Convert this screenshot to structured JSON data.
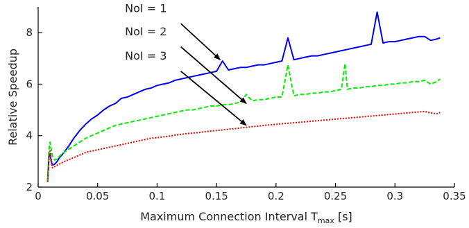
{
  "chart_data": {
    "type": "line",
    "xlabel": "Maximum Connection Interval T",
    "xlabel_sub": "max",
    "xlabel_suffix": " [s]",
    "ylabel": "Relative Speedup",
    "xlim": [
      0,
      0.35
    ],
    "ylim": [
      2,
      9
    ],
    "xticks": [
      0,
      0.05,
      0.1,
      0.15,
      0.2,
      0.25,
      0.3,
      0.35
    ],
    "xtick_labels": [
      "0",
      "0.05",
      "0.1",
      "0.15",
      "0.2",
      "0.25",
      "0.3",
      "0.35"
    ],
    "yticks": [
      2,
      4,
      6,
      8
    ],
    "ytick_labels": [
      "2",
      "4",
      "6",
      "8"
    ],
    "grid": false,
    "legend": "none",
    "series": [
      {
        "color": "#0000ee",
        "style": "solid",
        "points": [
          [
            0.008,
            2.2
          ],
          [
            0.009,
            3.2
          ],
          [
            0.01,
            3.3
          ],
          [
            0.011,
            3.0
          ],
          [
            0.012,
            2.85
          ],
          [
            0.014,
            2.9
          ],
          [
            0.016,
            3.0
          ],
          [
            0.018,
            3.15
          ],
          [
            0.02,
            3.25
          ],
          [
            0.025,
            3.55
          ],
          [
            0.03,
            3.9
          ],
          [
            0.035,
            4.2
          ],
          [
            0.04,
            4.45
          ],
          [
            0.045,
            4.65
          ],
          [
            0.05,
            4.8
          ],
          [
            0.055,
            5.0
          ],
          [
            0.06,
            5.15
          ],
          [
            0.065,
            5.25
          ],
          [
            0.07,
            5.45
          ],
          [
            0.075,
            5.5
          ],
          [
            0.08,
            5.6
          ],
          [
            0.085,
            5.7
          ],
          [
            0.09,
            5.8
          ],
          [
            0.095,
            5.85
          ],
          [
            0.1,
            5.95
          ],
          [
            0.105,
            6.0
          ],
          [
            0.11,
            6.05
          ],
          [
            0.115,
            6.15
          ],
          [
            0.12,
            6.2
          ],
          [
            0.125,
            6.25
          ],
          [
            0.13,
            6.3
          ],
          [
            0.135,
            6.35
          ],
          [
            0.14,
            6.4
          ],
          [
            0.145,
            6.45
          ],
          [
            0.15,
            6.5
          ],
          [
            0.155,
            6.9
          ],
          [
            0.16,
            6.55
          ],
          [
            0.165,
            6.6
          ],
          [
            0.17,
            6.65
          ],
          [
            0.175,
            6.65
          ],
          [
            0.18,
            6.7
          ],
          [
            0.185,
            6.75
          ],
          [
            0.19,
            6.75
          ],
          [
            0.195,
            6.8
          ],
          [
            0.2,
            6.85
          ],
          [
            0.205,
            6.9
          ],
          [
            0.21,
            7.8
          ],
          [
            0.215,
            6.95
          ],
          [
            0.22,
            7.0
          ],
          [
            0.225,
            7.05
          ],
          [
            0.23,
            7.1
          ],
          [
            0.235,
            7.1
          ],
          [
            0.24,
            7.15
          ],
          [
            0.245,
            7.2
          ],
          [
            0.25,
            7.25
          ],
          [
            0.255,
            7.3
          ],
          [
            0.26,
            7.35
          ],
          [
            0.265,
            7.4
          ],
          [
            0.27,
            7.45
          ],
          [
            0.275,
            7.5
          ],
          [
            0.28,
            7.55
          ],
          [
            0.285,
            8.8
          ],
          [
            0.29,
            7.6
          ],
          [
            0.295,
            7.65
          ],
          [
            0.3,
            7.65
          ],
          [
            0.305,
            7.7
          ],
          [
            0.31,
            7.75
          ],
          [
            0.315,
            7.8
          ],
          [
            0.32,
            7.85
          ],
          [
            0.325,
            7.85
          ],
          [
            0.33,
            7.7
          ],
          [
            0.335,
            7.75
          ],
          [
            0.338,
            7.8
          ]
        ]
      },
      {
        "color": "#00ee00",
        "style": "dashed",
        "points": [
          [
            0.008,
            2.25
          ],
          [
            0.009,
            3.4
          ],
          [
            0.01,
            3.75
          ],
          [
            0.011,
            3.45
          ],
          [
            0.012,
            3.2
          ],
          [
            0.014,
            3.05
          ],
          [
            0.016,
            3.1
          ],
          [
            0.018,
            3.2
          ],
          [
            0.02,
            3.3
          ],
          [
            0.025,
            3.45
          ],
          [
            0.03,
            3.6
          ],
          [
            0.035,
            3.75
          ],
          [
            0.04,
            3.9
          ],
          [
            0.045,
            4.0
          ],
          [
            0.05,
            4.1
          ],
          [
            0.055,
            4.2
          ],
          [
            0.06,
            4.3
          ],
          [
            0.065,
            4.4
          ],
          [
            0.07,
            4.45
          ],
          [
            0.075,
            4.5
          ],
          [
            0.08,
            4.55
          ],
          [
            0.085,
            4.6
          ],
          [
            0.09,
            4.65
          ],
          [
            0.095,
            4.7
          ],
          [
            0.1,
            4.75
          ],
          [
            0.105,
            4.8
          ],
          [
            0.11,
            4.85
          ],
          [
            0.115,
            4.9
          ],
          [
            0.12,
            4.95
          ],
          [
            0.125,
            5.0
          ],
          [
            0.13,
            5.0
          ],
          [
            0.135,
            5.05
          ],
          [
            0.14,
            5.1
          ],
          [
            0.145,
            5.15
          ],
          [
            0.15,
            5.15
          ],
          [
            0.155,
            5.2
          ],
          [
            0.16,
            5.2
          ],
          [
            0.165,
            5.25
          ],
          [
            0.17,
            5.3
          ],
          [
            0.175,
            5.6
          ],
          [
            0.18,
            5.35
          ],
          [
            0.185,
            5.4
          ],
          [
            0.19,
            5.4
          ],
          [
            0.195,
            5.45
          ],
          [
            0.2,
            5.5
          ],
          [
            0.205,
            5.5
          ],
          [
            0.21,
            6.75
          ],
          [
            0.215,
            5.55
          ],
          [
            0.22,
            5.6
          ],
          [
            0.225,
            5.6
          ],
          [
            0.23,
            5.65
          ],
          [
            0.235,
            5.65
          ],
          [
            0.24,
            5.7
          ],
          [
            0.245,
            5.7
          ],
          [
            0.25,
            5.75
          ],
          [
            0.255,
            5.8
          ],
          [
            0.258,
            6.8
          ],
          [
            0.26,
            5.8
          ],
          [
            0.265,
            5.85
          ],
          [
            0.27,
            5.85
          ],
          [
            0.275,
            5.9
          ],
          [
            0.28,
            5.9
          ],
          [
            0.285,
            5.95
          ],
          [
            0.29,
            5.95
          ],
          [
            0.295,
            6.0
          ],
          [
            0.3,
            6.0
          ],
          [
            0.305,
            6.05
          ],
          [
            0.31,
            6.05
          ],
          [
            0.315,
            6.1
          ],
          [
            0.32,
            6.1
          ],
          [
            0.325,
            6.15
          ],
          [
            0.33,
            6.0
          ],
          [
            0.335,
            6.1
          ],
          [
            0.338,
            6.2
          ]
        ]
      },
      {
        "color": "#ee0000",
        "style": "dotted",
        "points": [
          [
            0.008,
            2.2
          ],
          [
            0.009,
            3.0
          ],
          [
            0.01,
            3.4
          ],
          [
            0.011,
            3.05
          ],
          [
            0.012,
            2.75
          ],
          [
            0.014,
            2.8
          ],
          [
            0.016,
            2.85
          ],
          [
            0.018,
            2.9
          ],
          [
            0.02,
            2.95
          ],
          [
            0.025,
            3.05
          ],
          [
            0.03,
            3.15
          ],
          [
            0.035,
            3.25
          ],
          [
            0.04,
            3.35
          ],
          [
            0.045,
            3.4
          ],
          [
            0.05,
            3.45
          ],
          [
            0.055,
            3.5
          ],
          [
            0.06,
            3.55
          ],
          [
            0.065,
            3.6
          ],
          [
            0.07,
            3.65
          ],
          [
            0.075,
            3.7
          ],
          [
            0.08,
            3.75
          ],
          [
            0.085,
            3.8
          ],
          [
            0.09,
            3.85
          ],
          [
            0.095,
            3.9
          ],
          [
            0.1,
            3.92
          ],
          [
            0.105,
            3.95
          ],
          [
            0.11,
            3.98
          ],
          [
            0.115,
            4.02
          ],
          [
            0.12,
            4.05
          ],
          [
            0.125,
            4.08
          ],
          [
            0.13,
            4.1
          ],
          [
            0.135,
            4.12
          ],
          [
            0.14,
            4.15
          ],
          [
            0.145,
            4.18
          ],
          [
            0.15,
            4.2
          ],
          [
            0.155,
            4.22
          ],
          [
            0.16,
            4.25
          ],
          [
            0.165,
            4.27
          ],
          [
            0.17,
            4.3
          ],
          [
            0.175,
            4.32
          ],
          [
            0.18,
            4.35
          ],
          [
            0.185,
            4.37
          ],
          [
            0.19,
            4.4
          ],
          [
            0.195,
            4.42
          ],
          [
            0.2,
            4.44
          ],
          [
            0.205,
            4.46
          ],
          [
            0.21,
            4.48
          ],
          [
            0.215,
            4.5
          ],
          [
            0.22,
            4.52
          ],
          [
            0.225,
            4.54
          ],
          [
            0.23,
            4.56
          ],
          [
            0.235,
            4.58
          ],
          [
            0.24,
            4.6
          ],
          [
            0.245,
            4.62
          ],
          [
            0.25,
            4.64
          ],
          [
            0.255,
            4.66
          ],
          [
            0.26,
            4.68
          ],
          [
            0.265,
            4.7
          ],
          [
            0.27,
            4.72
          ],
          [
            0.275,
            4.74
          ],
          [
            0.28,
            4.76
          ],
          [
            0.285,
            4.78
          ],
          [
            0.29,
            4.8
          ],
          [
            0.295,
            4.82
          ],
          [
            0.3,
            4.84
          ],
          [
            0.305,
            4.86
          ],
          [
            0.31,
            4.88
          ],
          [
            0.315,
            4.9
          ],
          [
            0.32,
            4.92
          ],
          [
            0.325,
            4.94
          ],
          [
            0.33,
            4.88
          ],
          [
            0.335,
            4.85
          ],
          [
            0.338,
            4.9
          ]
        ]
      }
    ],
    "annotations": [
      {
        "text": "NoI = 1",
        "label_at": [
          0.073,
          8.8
        ],
        "arrow_from": [
          0.12,
          8.35
        ],
        "arrow_to": [
          0.153,
          6.95
        ]
      },
      {
        "text": "NoI = 2",
        "label_at": [
          0.073,
          7.9
        ],
        "arrow_from": [
          0.12,
          7.45
        ],
        "arrow_to": [
          0.175,
          5.25
        ]
      },
      {
        "text": "NoI = 3",
        "label_at": [
          0.073,
          6.95
        ],
        "arrow_from": [
          0.12,
          6.5
        ],
        "arrow_to": [
          0.175,
          4.4
        ]
      }
    ]
  }
}
